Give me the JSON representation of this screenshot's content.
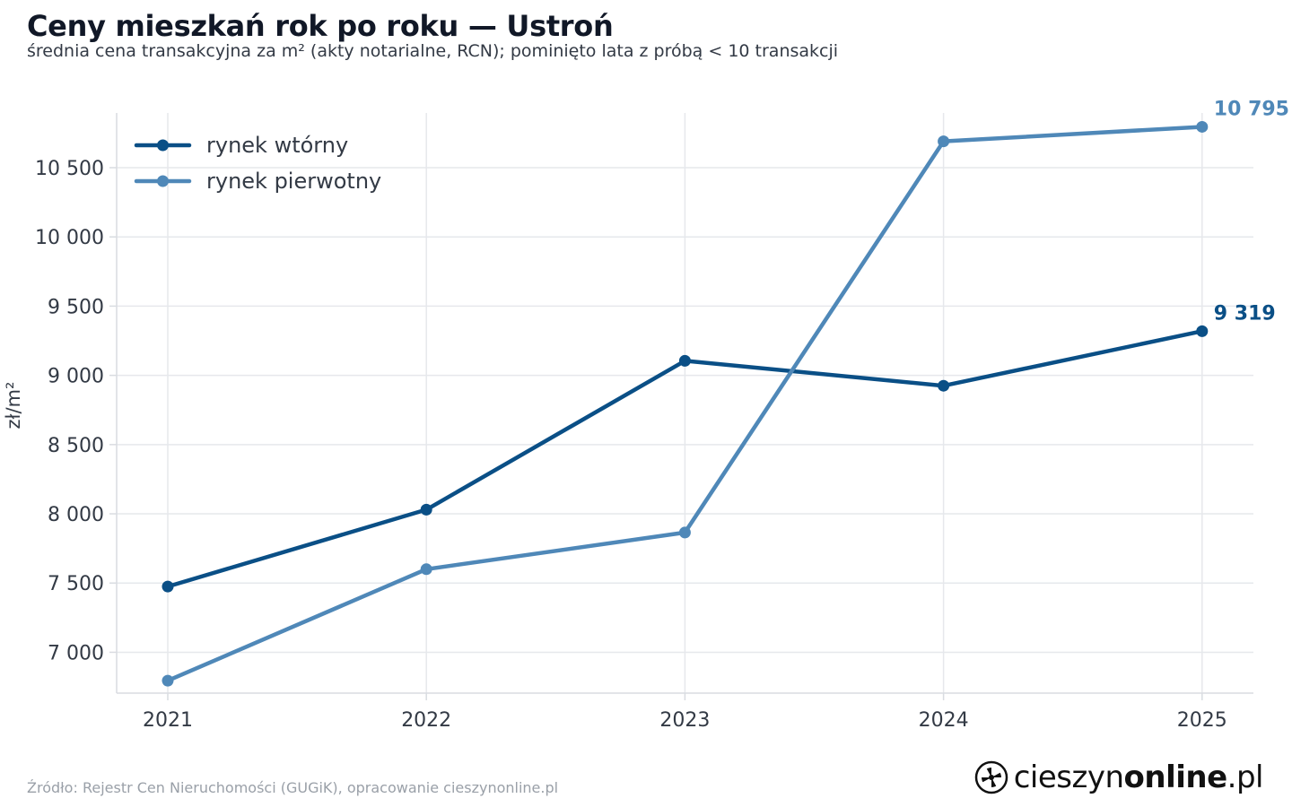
{
  "header": {
    "title": "Ceny mieszkań rok po roku — Ustroń",
    "subtitle": "średnia cena transakcyjna za m² (akty notarialne, RCN); pominięto lata z próbą < 10 transakcji"
  },
  "colors": {
    "secondary": "#0a4f86",
    "primary_market": "#4f88b8",
    "grid": "#e6e8ec",
    "axis": "#d9dce1",
    "tick_text": "#333a45"
  },
  "chart_data": {
    "type": "line",
    "x": [
      "2021",
      "2022",
      "2023",
      "2024",
      "2025"
    ],
    "ylabel": "zł/m²",
    "xlabel": "",
    "ylim": [
      6800,
      10800
    ],
    "yticks": [
      7000,
      7500,
      8000,
      8500,
      9000,
      9500,
      10000,
      10500
    ],
    "ytick_labels": [
      "7 000",
      "7 500",
      "8 000",
      "8 500",
      "9 000",
      "9 500",
      "10 000",
      "10 500"
    ],
    "grid": true,
    "legend_position": "top-left",
    "series": [
      {
        "name": "rynek wtórny",
        "color": "#0a4f86",
        "values": [
          7475,
          8030,
          9105,
          8925,
          9319
        ],
        "end_label": "9 319"
      },
      {
        "name": "rynek pierwotny",
        "color": "#4f88b8",
        "values": [
          6795,
          7600,
          7865,
          10690,
          10795
        ],
        "end_label": "10 795"
      }
    ]
  },
  "footer": {
    "source": "Źródło: Rejestr Cen Nieruchomości (GUGiK), opracowanie cieszynonline.pl",
    "brand_regular": "cieszyn",
    "brand_bold": "online",
    "brand_suffix": ".pl",
    "brand_icon": "pinwheel-logo-icon"
  }
}
